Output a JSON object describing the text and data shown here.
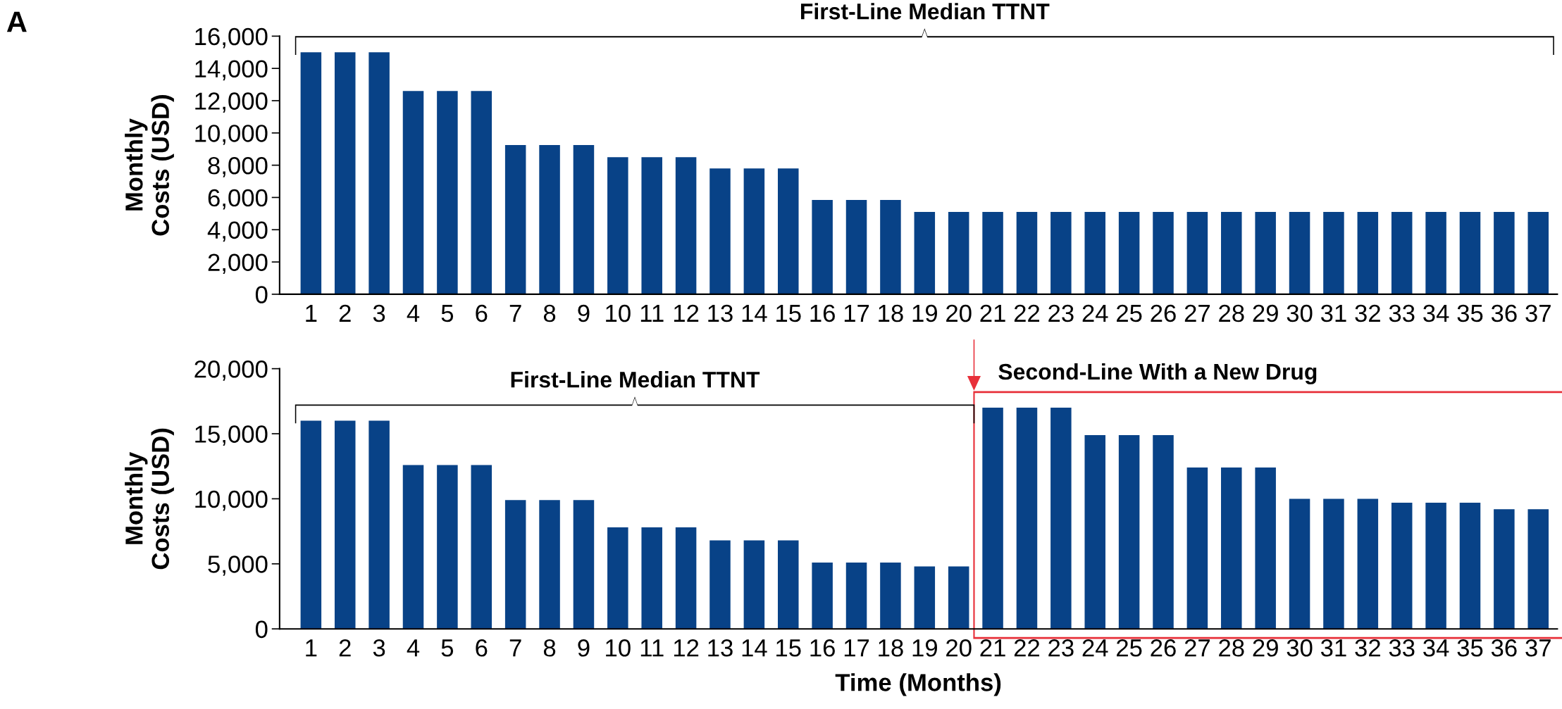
{
  "chart_data": [
    {
      "type": "bar",
      "ylabel": "Monthly\nCosts (USD)",
      "categories": [
        "1",
        "2",
        "3",
        "4",
        "5",
        "6",
        "7",
        "8",
        "9",
        "10",
        "11",
        "12",
        "13",
        "14",
        "15",
        "16",
        "17",
        "18",
        "19",
        "20",
        "21",
        "22",
        "23",
        "24",
        "25",
        "26",
        "27",
        "28",
        "29",
        "30",
        "31",
        "32",
        "33",
        "34",
        "35",
        "36",
        "37"
      ],
      "values": [
        15000,
        15000,
        15000,
        12600,
        12600,
        12600,
        9250,
        9250,
        9250,
        8500,
        8500,
        8500,
        7800,
        7800,
        7800,
        5850,
        5850,
        5850,
        5100,
        5100,
        5100,
        5100,
        5100,
        5100,
        5100,
        5100,
        5100,
        5100,
        5100,
        5100,
        5100,
        5100,
        5100,
        5100,
        5100,
        5100,
        5100
      ],
      "color": "#084287",
      "ylim": [
        0,
        16000
      ],
      "yticks": [
        0,
        {
          "value": 2000,
          "label": "2,000"
        },
        {
          "value": 4000,
          "label": "4,000"
        },
        {
          "value": 6000,
          "label": "6,000"
        },
        {
          "value": 8000,
          "label": "8,000"
        },
        {
          "value": 10000,
          "label": "10,000"
        },
        {
          "value": 12000,
          "label": "12,000"
        },
        {
          "value": 14000,
          "label": "14,000"
        },
        {
          "value": 16000,
          "label": "16,000"
        }
      ],
      "annotations": [
        "A",
        "First-Line Median TTNT"
      ],
      "grid": false,
      "legend": false
    },
    {
      "type": "bar",
      "ylabel": "Monthly\nCosts (USD)",
      "xlabel": "Time (Months)",
      "categories": [
        "1",
        "2",
        "3",
        "4",
        "5",
        "6",
        "7",
        "8",
        "9",
        "10",
        "11",
        "12",
        "13",
        "14",
        "15",
        "16",
        "17",
        "18",
        "19",
        "20",
        "21",
        "22",
        "23",
        "24",
        "25",
        "26",
        "27",
        "28",
        "29",
        "30",
        "31",
        "32",
        "33",
        "34",
        "35",
        "36",
        "37"
      ],
      "values": [
        16000,
        16000,
        16000,
        12600,
        12600,
        12600,
        9900,
        9900,
        9900,
        7800,
        7800,
        7800,
        6800,
        6800,
        6800,
        5100,
        5100,
        5100,
        4800,
        4800,
        17000,
        17000,
        17000,
        14900,
        14900,
        14900,
        12400,
        12400,
        12400,
        10000,
        10000,
        10000,
        9700,
        9700,
        9700,
        9200,
        9200
      ],
      "color": "#084287",
      "ylim": [
        0,
        20000
      ],
      "yticks": [
        0,
        {
          "value": 5000,
          "label": "5,000"
        },
        {
          "value": 10000,
          "label": "10,000"
        },
        {
          "value": 15000,
          "label": "15,000"
        },
        {
          "value": 20000,
          "label": "20,000"
        }
      ],
      "annotations": [
        "First-Line Median TTNT",
        "Second-Line With a New Drug"
      ],
      "grid": false,
      "legend": false
    }
  ]
}
